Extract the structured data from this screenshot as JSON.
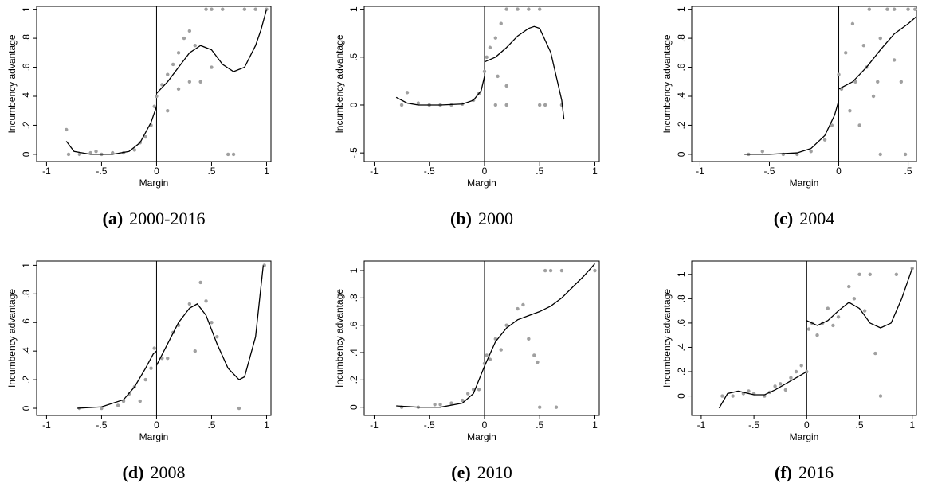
{
  "chart_data": [
    {
      "type": "scatter",
      "caption_label": "(a)",
      "caption": "2000-2016",
      "xlabel": "Margin",
      "ylabel": "Incumbency advantage",
      "xlim": [
        -1.09,
        1.04
      ],
      "ylim": [
        -0.05,
        1.02
      ],
      "vline": 0,
      "xticks": [
        -1,
        {
          "value": -0.5,
          "label": "-.5"
        },
        0,
        {
          "value": 0.5,
          "label": ".5"
        },
        1
      ],
      "yticks": [
        0,
        {
          "value": 0.2,
          "label": ".2"
        },
        {
          "value": 0.4,
          "label": ".4"
        },
        {
          "value": 0.6,
          "label": ".6"
        },
        {
          "value": 0.8,
          "label": ".8"
        },
        1
      ],
      "series": [
        {
          "type": "scatter",
          "color": "#a0a0a0",
          "x": [
            -0.82,
            -0.8,
            -0.7,
            -0.6,
            -0.55,
            -0.5,
            -0.4,
            -0.3,
            -0.2,
            -0.15,
            -0.1,
            -0.05,
            -0.02,
            0,
            0.05,
            0.1,
            0.15,
            0.2,
            0.25,
            0.3,
            0.35,
            0.4,
            0.45,
            0.5,
            0.6,
            0.65,
            0.7,
            0.8,
            0.9,
            1,
            0.3,
            0.5,
            0.2,
            0.1
          ],
          "values": [
            0.17,
            0,
            0,
            0.01,
            0.02,
            0,
            0.01,
            0.01,
            0.03,
            0.08,
            0.12,
            0.2,
            0.33,
            0.4,
            0.48,
            0.55,
            0.62,
            0.7,
            0.8,
            0.85,
            0.75,
            0.5,
            1,
            1,
            1,
            0,
            0,
            1,
            1,
            1,
            0.5,
            0.6,
            0.45,
            0.3
          ]
        },
        {
          "type": "line",
          "color": "#000000",
          "x": [
            -0.82,
            -0.75,
            -0.6,
            -0.4,
            -0.25,
            -0.15,
            -0.05,
            0,
            0,
            0,
            0.1,
            0.2,
            0.3,
            0.4,
            0.5,
            0.6,
            0.7,
            0.8,
            0.9,
            0.95,
            1
          ],
          "values": [
            0.09,
            0.02,
            0,
            0,
            0.02,
            0.08,
            0.22,
            0.33,
            null,
            0.42,
            0.5,
            0.6,
            0.7,
            0.75,
            0.72,
            0.62,
            0.57,
            0.6,
            0.75,
            0.86,
            1
          ]
        }
      ]
    },
    {
      "type": "scatter",
      "caption_label": "(b)",
      "caption": "2000",
      "xlabel": "Margin",
      "ylabel": "Incumbency advantage",
      "xlim": [
        -1.09,
        1.04
      ],
      "ylim": [
        -0.59,
        1.03
      ],
      "vline": 0,
      "xticks": [
        -1,
        {
          "value": -0.5,
          "label": "-.5"
        },
        0,
        {
          "value": 0.5,
          "label": ".5"
        },
        1
      ],
      "yticks": [
        {
          "value": -0.5,
          "label": "-.5"
        },
        0,
        {
          "value": 0.5,
          "label": ".5"
        },
        1
      ],
      "series": [
        {
          "type": "scatter",
          "color": "#a0a0a0",
          "x": [
            -0.75,
            -0.7,
            -0.6,
            -0.5,
            -0.4,
            -0.3,
            -0.2,
            -0.1,
            -0.05,
            0,
            0.02,
            0.05,
            0.1,
            0.15,
            0.2,
            0.3,
            0.4,
            0.5,
            0.1,
            0.2,
            0.5,
            0.55,
            0.7,
            0.12,
            0.2
          ],
          "values": [
            0,
            0.13,
            0.02,
            0,
            0,
            0,
            0.01,
            0.05,
            0.12,
            0.35,
            0.5,
            0.6,
            0.7,
            0.85,
            1,
            1,
            1,
            1,
            0,
            0,
            0,
            0,
            0,
            0.3,
            0.2
          ]
        },
        {
          "type": "line",
          "color": "#000000",
          "x": [
            -0.8,
            -0.7,
            -0.6,
            -0.4,
            -0.2,
            -0.1,
            -0.03,
            0,
            0,
            0,
            0.1,
            0.2,
            0.3,
            0.4,
            0.45,
            0.5,
            0.6,
            0.7,
            0.72
          ],
          "values": [
            0.08,
            0.02,
            0,
            0,
            0.01,
            0.05,
            0.15,
            0.3,
            null,
            0.45,
            0.5,
            0.6,
            0.72,
            0.8,
            0.82,
            0.8,
            0.55,
            0.05,
            -0.15
          ]
        }
      ]
    },
    {
      "type": "scatter",
      "caption_label": "(c)",
      "caption": "2004",
      "xlabel": "Margin",
      "ylabel": "Incumbency advantage",
      "xlim": [
        -1.06,
        0.56
      ],
      "ylim": [
        -0.05,
        1.02
      ],
      "vline": 0,
      "xticks": [
        -1,
        {
          "value": -0.5,
          "label": "-.5"
        },
        0,
        {
          "value": 0.5,
          "label": ".5"
        }
      ],
      "yticks": [
        0,
        {
          "value": 0.2,
          "label": ".2"
        },
        {
          "value": 0.4,
          "label": ".4"
        },
        {
          "value": 0.6,
          "label": ".6"
        },
        {
          "value": 0.8,
          "label": ".8"
        },
        1
      ],
      "series": [
        {
          "type": "scatter",
          "color": "#a0a0a0",
          "x": [
            -0.65,
            -0.55,
            -0.4,
            -0.3,
            -0.2,
            -0.1,
            -0.05,
            0,
            0.02,
            0.05,
            0.08,
            0.1,
            0.12,
            0.15,
            0.18,
            0.2,
            0.22,
            0.25,
            0.3,
            0.3,
            0.35,
            0.4,
            0.45,
            0.48,
            0.5,
            0.55,
            0.4,
            0.28
          ],
          "values": [
            0,
            0.02,
            0,
            0,
            0.02,
            0.1,
            0.2,
            0.55,
            0.45,
            0.7,
            0.3,
            0.9,
            0.5,
            0.2,
            0.75,
            0.6,
            1,
            0.4,
            0.8,
            0,
            1,
            0.65,
            0.5,
            0,
            1,
            1,
            1,
            0.5
          ]
        },
        {
          "type": "line",
          "color": "#000000",
          "x": [
            -0.68,
            -0.5,
            -0.3,
            -0.2,
            -0.1,
            -0.03,
            0,
            0,
            0,
            0.1,
            0.2,
            0.3,
            0.4,
            0.5,
            0.56
          ],
          "values": [
            0,
            0,
            0.01,
            0.04,
            0.13,
            0.27,
            0.37,
            null,
            0.45,
            0.5,
            0.6,
            0.72,
            0.83,
            0.9,
            0.95
          ]
        }
      ]
    },
    {
      "type": "scatter",
      "caption_label": "(d)",
      "caption": "2008",
      "xlabel": "Margin",
      "ylabel": "Incumbency advantage",
      "xlim": [
        -1.09,
        1.04
      ],
      "ylim": [
        -0.05,
        1.03
      ],
      "vline": 0,
      "xticks": [
        -1,
        {
          "value": -0.5,
          "label": "-.5"
        },
        0,
        {
          "value": 0.5,
          "label": ".5"
        },
        1
      ],
      "yticks": [
        0,
        {
          "value": 0.2,
          "label": ".2"
        },
        {
          "value": 0.4,
          "label": ".4"
        },
        {
          "value": 0.6,
          "label": ".6"
        },
        {
          "value": 0.8,
          "label": ".8"
        },
        1
      ],
      "series": [
        {
          "type": "scatter",
          "color": "#a0a0a0",
          "x": [
            -0.7,
            -0.5,
            -0.35,
            -0.3,
            -0.25,
            -0.2,
            -0.15,
            -0.1,
            -0.05,
            -0.02,
            0.05,
            0.1,
            0.15,
            0.2,
            0.3,
            0.35,
            0.4,
            0.45,
            0.5,
            0.55,
            0.75,
            0.98
          ],
          "values": [
            0,
            0,
            0.02,
            0.05,
            0.1,
            0.15,
            0.05,
            0.2,
            0.28,
            0.42,
            0.35,
            0.35,
            0.53,
            0.58,
            0.73,
            0.4,
            0.88,
            0.75,
            0.6,
            0.5,
            0,
            1
          ]
        },
        {
          "type": "line",
          "color": "#000000",
          "x": [
            -0.72,
            -0.5,
            -0.3,
            -0.2,
            -0.1,
            -0.03,
            0,
            0,
            0,
            0.1,
            0.2,
            0.3,
            0.37,
            0.45,
            0.55,
            0.65,
            0.75,
            0.8,
            0.9,
            0.97
          ],
          "values": [
            0,
            0.01,
            0.06,
            0.15,
            0.28,
            0.38,
            0.4,
            null,
            0.3,
            0.45,
            0.6,
            0.7,
            0.73,
            0.65,
            0.45,
            0.28,
            0.2,
            0.22,
            0.5,
            1
          ]
        }
      ]
    },
    {
      "type": "scatter",
      "caption_label": "(e)",
      "caption": "2010",
      "xlabel": "Margin",
      "ylabel": "Incumbency advantage",
      "xlim": [
        -1.09,
        1.04
      ],
      "ylim": [
        -0.06,
        1.07
      ],
      "vline": 0,
      "xticks": [
        -1,
        {
          "value": -0.5,
          "label": "-.5"
        },
        0,
        {
          "value": 0.5,
          "label": ".5"
        },
        1
      ],
      "yticks": [
        0,
        {
          "value": 0.2,
          "label": ".2"
        },
        {
          "value": 0.4,
          "label": ".4"
        },
        {
          "value": 0.6,
          "label": ".6"
        },
        {
          "value": 0.8,
          "label": ".8"
        },
        1
      ],
      "series": [
        {
          "type": "scatter",
          "color": "#a0a0a0",
          "x": [
            -0.75,
            -0.6,
            -0.45,
            -0.4,
            -0.3,
            -0.2,
            -0.15,
            -0.1,
            -0.05,
            0,
            0.02,
            0.05,
            0.1,
            0.15,
            0.2,
            0.3,
            0.35,
            0.4,
            0.45,
            0.48,
            0.5,
            0.55,
            0.6,
            0.65,
            0.7,
            1
          ],
          "values": [
            0,
            0,
            0.02,
            0.02,
            0.03,
            0.05,
            0.1,
            0.13,
            0.13,
            0.32,
            0.38,
            0.35,
            0.5,
            0.42,
            0.6,
            0.72,
            0.75,
            0.5,
            0.38,
            0.33,
            0,
            1,
            1,
            0,
            1,
            1
          ]
        },
        {
          "type": "line",
          "color": "#000000",
          "x": [
            -0.8,
            -0.6,
            -0.4,
            -0.2,
            -0.1,
            0,
            0.1,
            0.2,
            0.3,
            0.4,
            0.5,
            0.6,
            0.7,
            0.8,
            0.9,
            1
          ],
          "values": [
            0.01,
            0,
            0,
            0.03,
            0.1,
            0.3,
            0.48,
            0.58,
            0.64,
            0.67,
            0.7,
            0.74,
            0.8,
            0.88,
            0.96,
            1.05
          ]
        }
      ]
    },
    {
      "type": "scatter",
      "caption_label": "(f)",
      "caption": "2016",
      "xlabel": "Margin",
      "ylabel": "Incumbency advantage",
      "xlim": [
        -1.09,
        1.04
      ],
      "ylim": [
        -0.16,
        1.11
      ],
      "vline": 0,
      "xticks": [
        -1,
        {
          "value": -0.5,
          "label": "-.5"
        },
        0,
        {
          "value": 0.5,
          "label": ".5"
        },
        1
      ],
      "yticks": [
        0,
        {
          "value": 0.2,
          "label": ".2"
        },
        {
          "value": 0.4,
          "label": ".4"
        },
        {
          "value": 0.6,
          "label": ".6"
        },
        {
          "value": 0.8,
          "label": ".8"
        },
        1
      ],
      "series": [
        {
          "type": "scatter",
          "color": "#a0a0a0",
          "x": [
            -0.8,
            -0.7,
            -0.6,
            -0.55,
            -0.5,
            -0.4,
            -0.35,
            -0.3,
            -0.25,
            -0.2,
            -0.15,
            -0.1,
            -0.05,
            0,
            0.02,
            0.05,
            0.1,
            0.15,
            0.2,
            0.25,
            0.3,
            0.4,
            0.45,
            0.5,
            0.55,
            0.6,
            0.65,
            0.7,
            0.85,
            1
          ],
          "values": [
            0,
            0,
            0.02,
            0.04,
            0.02,
            0,
            0.03,
            0.08,
            0.1,
            0.05,
            0.15,
            0.2,
            0.25,
            0.2,
            0.55,
            0.6,
            0.5,
            0.6,
            0.72,
            0.58,
            0.65,
            0.9,
            0.8,
            1,
            0.7,
            1,
            0.35,
            0,
            1,
            1.05
          ]
        },
        {
          "type": "line",
          "color": "#000000",
          "x": [
            -0.83,
            -0.75,
            -0.65,
            -0.5,
            -0.4,
            -0.3,
            -0.2,
            -0.1,
            0,
            0,
            0,
            0.1,
            0.2,
            0.3,
            0.4,
            0.5,
            0.6,
            0.7,
            0.8,
            0.9,
            1
          ],
          "values": [
            -0.1,
            0.02,
            0.04,
            0.01,
            0.01,
            0.05,
            0.1,
            0.15,
            0.2,
            null,
            0.62,
            0.58,
            0.62,
            0.7,
            0.77,
            0.72,
            0.6,
            0.56,
            0.6,
            0.8,
            1.05
          ]
        }
      ]
    }
  ]
}
